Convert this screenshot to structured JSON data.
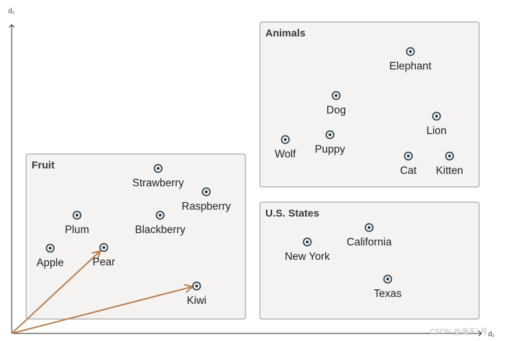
{
  "axes": {
    "y_label": "d₁",
    "x_label": "d₂"
  },
  "groups": [
    {
      "id": "fruit",
      "title": "Fruit",
      "points": [
        "Strawberry",
        "Raspberry",
        "Plum",
        "Blackberry",
        "Apple",
        "Pear",
        "Kiwi"
      ]
    },
    {
      "id": "animals",
      "title": "Animals",
      "points": [
        "Elephant",
        "Dog",
        "Lion",
        "Wolf",
        "Puppy",
        "Cat",
        "Kitten"
      ]
    },
    {
      "id": "states",
      "title": "U.S. States",
      "points": [
        "California",
        "New York",
        "Texas"
      ]
    }
  ],
  "vectors": [
    {
      "to": "Pear"
    },
    {
      "to": "Kiwi"
    }
  ],
  "colors": {
    "vector": "#b87d4b",
    "box_fill": "#f4f3f1",
    "box_stroke": "#8f8f8f",
    "marker": "#2a3e4c"
  },
  "watermark": "CSDN @海天1号"
}
